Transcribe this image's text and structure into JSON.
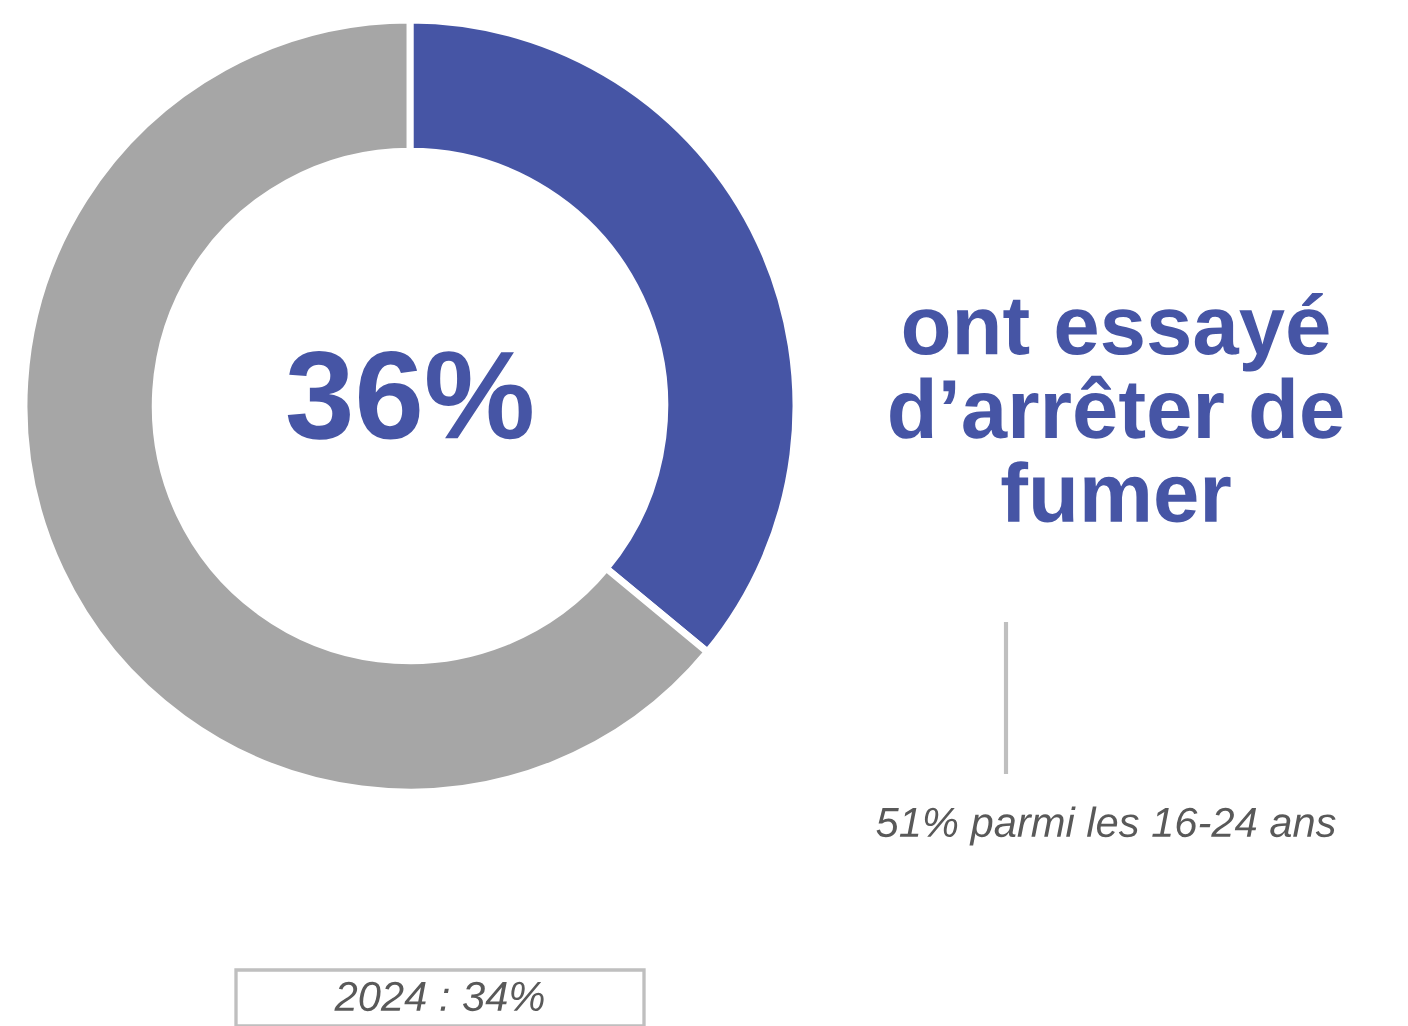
{
  "chart_data": {
    "type": "donut",
    "categories": [
      null,
      null
    ],
    "values": [
      36,
      64
    ],
    "colors": [
      "#4655a5",
      "#a6a6a6"
    ],
    "annotations": [
      "36%",
      "ont essayé\nd’arrêter de\nfumer",
      "51% parmi les 16-24 ans",
      "2024 : 34%"
    ]
  }
}
